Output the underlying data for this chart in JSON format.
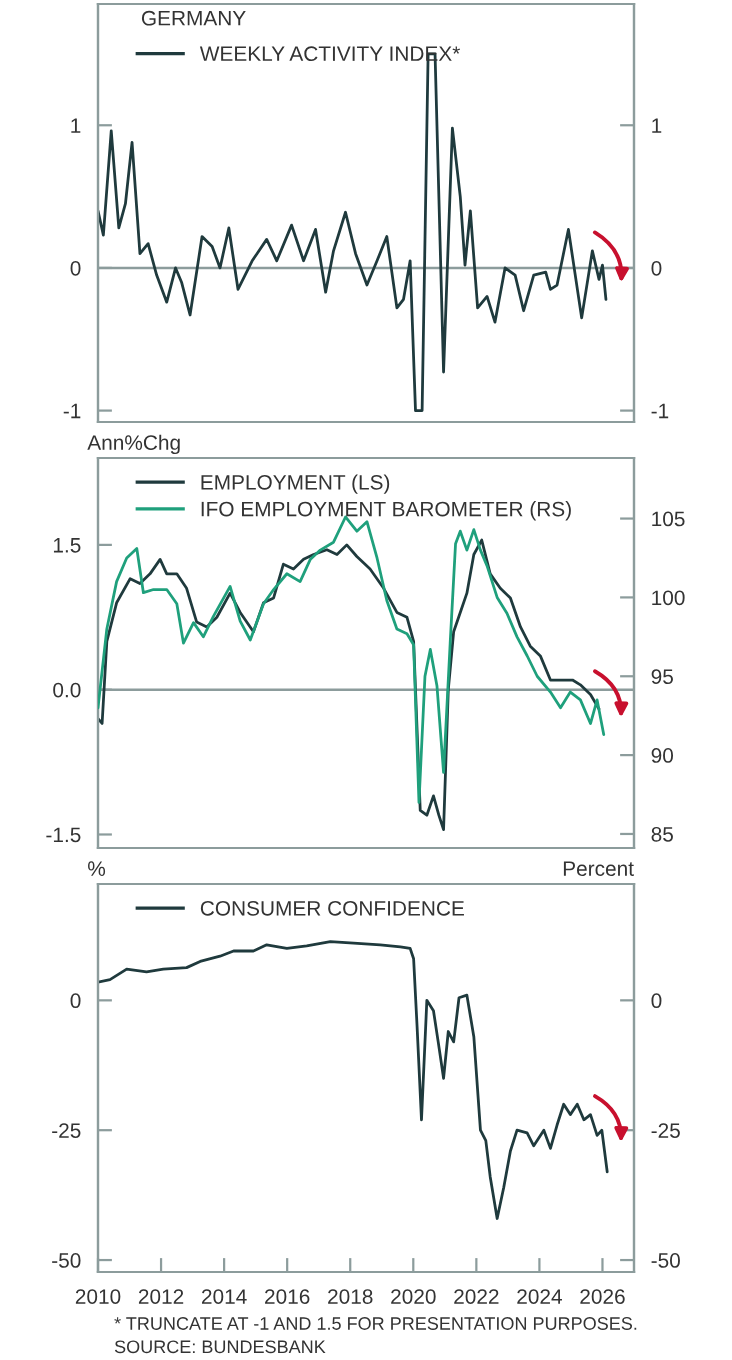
{
  "chart_data": [
    {
      "type": "line",
      "title": "GERMANY",
      "xlim": [
        2010,
        2027
      ],
      "ylim": [
        -1.08,
        1.85
      ],
      "yticks": [
        -1,
        0,
        1
      ],
      "y2lim": [
        -1.08,
        1.85
      ],
      "y2ticks": [
        -1,
        0,
        1
      ],
      "tick_labels": "y",
      "legend": "top left",
      "ref_lines": [
        {
          "axis": "y",
          "value": 0,
          "color": "#8c9c9c"
        }
      ],
      "series": [
        {
          "name": "WEEKLY ACTIVITY INDEX*",
          "color": "#1f3a3d",
          "x": [
            2010.0,
            2010.17,
            2010.42,
            2010.66,
            2010.87,
            2011.08,
            2011.33,
            2011.59,
            2011.86,
            2012.18,
            2012.46,
            2012.65,
            2012.92,
            2013.3,
            2013.62,
            2013.87,
            2014.15,
            2014.44,
            2014.89,
            2015.35,
            2015.67,
            2016.14,
            2016.52,
            2016.9,
            2017.22,
            2017.47,
            2017.85,
            2018.17,
            2018.53,
            2018.85,
            2019.16,
            2019.48,
            2019.69,
            2019.9,
            2020.07,
            2020.28,
            2020.47,
            2020.69,
            2020.96,
            2021.24,
            2021.49,
            2021.64,
            2021.81,
            2022.04,
            2022.34,
            2022.59,
            2022.91,
            2023.23,
            2023.5,
            2023.82,
            2024.2,
            2024.35,
            2024.56,
            2024.92,
            2025.34,
            2025.68,
            2025.89,
            2026.0,
            2026.11
          ],
          "values": [
            0.4,
            0.23,
            0.96,
            0.28,
            0.45,
            0.88,
            0.1,
            0.17,
            -0.05,
            -0.24,
            0,
            -0.1,
            -0.33,
            0.22,
            0.15,
            0.0,
            0.28,
            -0.15,
            0.05,
            0.2,
            0.05,
            0.3,
            0.05,
            0.27,
            -0.17,
            0.12,
            0.39,
            0.1,
            -0.12,
            0.05,
            0.22,
            -0.28,
            -0.22,
            0.05,
            -1,
            -1,
            1.5,
            1.5,
            -0.73,
            0.98,
            0.5,
            0.02,
            0.4,
            -0.28,
            -0.2,
            -0.38,
            0,
            -0.05,
            -0.3,
            -0.05,
            -0.03,
            -0.15,
            -0.12,
            0.27,
            -0.35,
            0.12,
            -0.08,
            0.02,
            -0.22
          ]
        }
      ]
    },
    {
      "type": "line",
      "ylabel": "Ann%Chg",
      "xlim": [
        2010,
        2027
      ],
      "ylim": [
        -1.64,
        2.4
      ],
      "yticks": [
        {
          "value": -1.5,
          "label": "-1.5"
        },
        {
          "value": 0,
          "label": "0.0"
        },
        1.5
      ],
      "y2lim": [
        84.11,
        108.84
      ],
      "y2ticks": [
        85,
        90,
        95,
        100,
        105
      ],
      "tick_labels": "y",
      "legend": "top left",
      "ref_lines": [
        {
          "axis": "y",
          "value": 0,
          "color": "#8c9c9c"
        }
      ],
      "series": [
        {
          "name": "EMPLOYMENT (LS)",
          "color": "#1f3a3d",
          "x": [
            2010.0,
            2010.13,
            2010.28,
            2010.59,
            2011.02,
            2011.33,
            2011.65,
            2011.97,
            2012.18,
            2012.5,
            2012.81,
            2013.13,
            2013.45,
            2013.77,
            2014.19,
            2014.51,
            2014.93,
            2015.25,
            2015.57,
            2015.88,
            2016.2,
            2016.52,
            2016.84,
            2017.26,
            2017.58,
            2017.89,
            2018.21,
            2018.63,
            2019.06,
            2019.48,
            2019.8,
            2020.01,
            2020.22,
            2020.43,
            2020.64,
            2020.81,
            2020.96,
            2021.11,
            2021.28,
            2021.49,
            2021.7,
            2021.92,
            2022.17,
            2022.44,
            2022.76,
            2023.08,
            2023.4,
            2023.71,
            2024.03,
            2024.35,
            2024.67,
            2025.05,
            2025.3,
            2025.62,
            2025.89
          ],
          "values": [
            -0.3,
            -0.35,
            0.5,
            0.9,
            1.15,
            1.1,
            1.2,
            1.35,
            1.2,
            1.2,
            1.05,
            0.7,
            0.65,
            0.75,
            1.0,
            0.8,
            0.6,
            0.9,
            0.95,
            1.3,
            1.25,
            1.35,
            1.4,
            1.45,
            1.4,
            1.5,
            1.38,
            1.25,
            1.05,
            0.8,
            0.75,
            0.5,
            -1.25,
            -1.3,
            -1.1,
            -1.3,
            -1.45,
            0.0,
            0.6,
            0.8,
            1.0,
            1.4,
            1.55,
            1.2,
            1.05,
            0.95,
            0.65,
            0.45,
            0.35,
            0.1,
            0.1,
            0.1,
            0.05,
            -0.05,
            -0.2
          ]
        },
        {
          "name": "IFO EMPLOYMENT BAROMETER (RS)",
          "color": "#1fa07c",
          "axis": "y2",
          "x": [
            2010.0,
            2010.28,
            2010.59,
            2010.91,
            2011.23,
            2011.44,
            2011.76,
            2012.18,
            2012.5,
            2012.71,
            2013.03,
            2013.34,
            2013.66,
            2014.19,
            2014.51,
            2014.83,
            2015.25,
            2015.57,
            2015.99,
            2016.41,
            2016.73,
            2017.05,
            2017.47,
            2017.85,
            2018.21,
            2018.53,
            2018.85,
            2019.16,
            2019.48,
            2019.8,
            2020.01,
            2020.18,
            2020.37,
            2020.54,
            2020.75,
            2020.96,
            2021.17,
            2021.34,
            2021.49,
            2021.7,
            2021.92,
            2022.13,
            2022.34,
            2022.66,
            2022.97,
            2023.29,
            2023.61,
            2023.93,
            2024.35,
            2024.67,
            2024.98,
            2025.3,
            2025.62,
            2025.83,
            2026.04
          ],
          "values": [
            93,
            98,
            101,
            102.5,
            103.1,
            100.3,
            100.5,
            100.5,
            99.6,
            97.1,
            98.4,
            97.5,
            98.8,
            100.7,
            98.5,
            97.3,
            99.6,
            100.5,
            101.5,
            101,
            102.4,
            103,
            103.5,
            105.1,
            104.2,
            104.8,
            102.5,
            99.8,
            98,
            97.7,
            97,
            87,
            95,
            96.7,
            94.4,
            88.9,
            97.1,
            103.4,
            104.2,
            103,
            104.3,
            103,
            102,
            100,
            99,
            97.5,
            96.3,
            95,
            94,
            93,
            94,
            93.5,
            92,
            93.5,
            91.3
          ]
        }
      ]
    },
    {
      "type": "line",
      "ylabel": "%",
      "y2label": "Percent",
      "xlim": [
        2010,
        2027
      ],
      "xticks": [
        2010,
        2012,
        2014,
        2016,
        2018,
        2020,
        2022,
        2024,
        2026
      ],
      "ylim": [
        -52.3,
        22.4
      ],
      "yticks": [
        -50,
        -25,
        0
      ],
      "y2lim": [
        -52.3,
        22.4
      ],
      "y2ticks": [
        -50,
        -25,
        0
      ],
      "legend": "top left",
      "annotations": [
        "* TRUNCATE AT -1 AND 1.5 FOR PRESENTATION PURPOSES.",
        "SOURCE: BUNDESBANK"
      ],
      "series": [
        {
          "name": "CONSUMER CONFIDENCE",
          "color": "#1f3a3d",
          "x": [
            2010.0,
            2010.38,
            2010.91,
            2011.54,
            2012.07,
            2012.81,
            2013.24,
            2013.87,
            2014.3,
            2014.93,
            2015.35,
            2015.99,
            2016.62,
            2017.37,
            2018.11,
            2018.95,
            2019.59,
            2019.9,
            2020.01,
            2020.12,
            2020.26,
            2020.43,
            2020.64,
            2020.79,
            2020.96,
            2021.11,
            2021.28,
            2021.45,
            2021.7,
            2021.92,
            2022.13,
            2022.3,
            2022.44,
            2022.66,
            2022.87,
            2023.08,
            2023.29,
            2023.61,
            2023.82,
            2024.14,
            2024.35,
            2024.56,
            2024.77,
            2024.98,
            2025.2,
            2025.41,
            2025.62,
            2025.83,
            2025.98,
            2026.15
          ],
          "values": [
            3.5,
            4,
            6,
            5.5,
            6,
            6.3,
            7.5,
            8.5,
            9.5,
            9.5,
            10.7,
            10,
            10.5,
            11.3,
            11,
            10.7,
            10.3,
            10,
            8,
            -5,
            -23,
            0,
            -2,
            -8,
            -15,
            -6,
            -8,
            0.5,
            1,
            -7,
            -25,
            -27,
            -34,
            -42,
            -36,
            -29,
            -25,
            -25.5,
            -28,
            -25,
            -28.5,
            -24,
            -20,
            -22,
            -20,
            -23,
            -22,
            -26,
            -25,
            -33
          ]
        }
      ]
    }
  ]
}
